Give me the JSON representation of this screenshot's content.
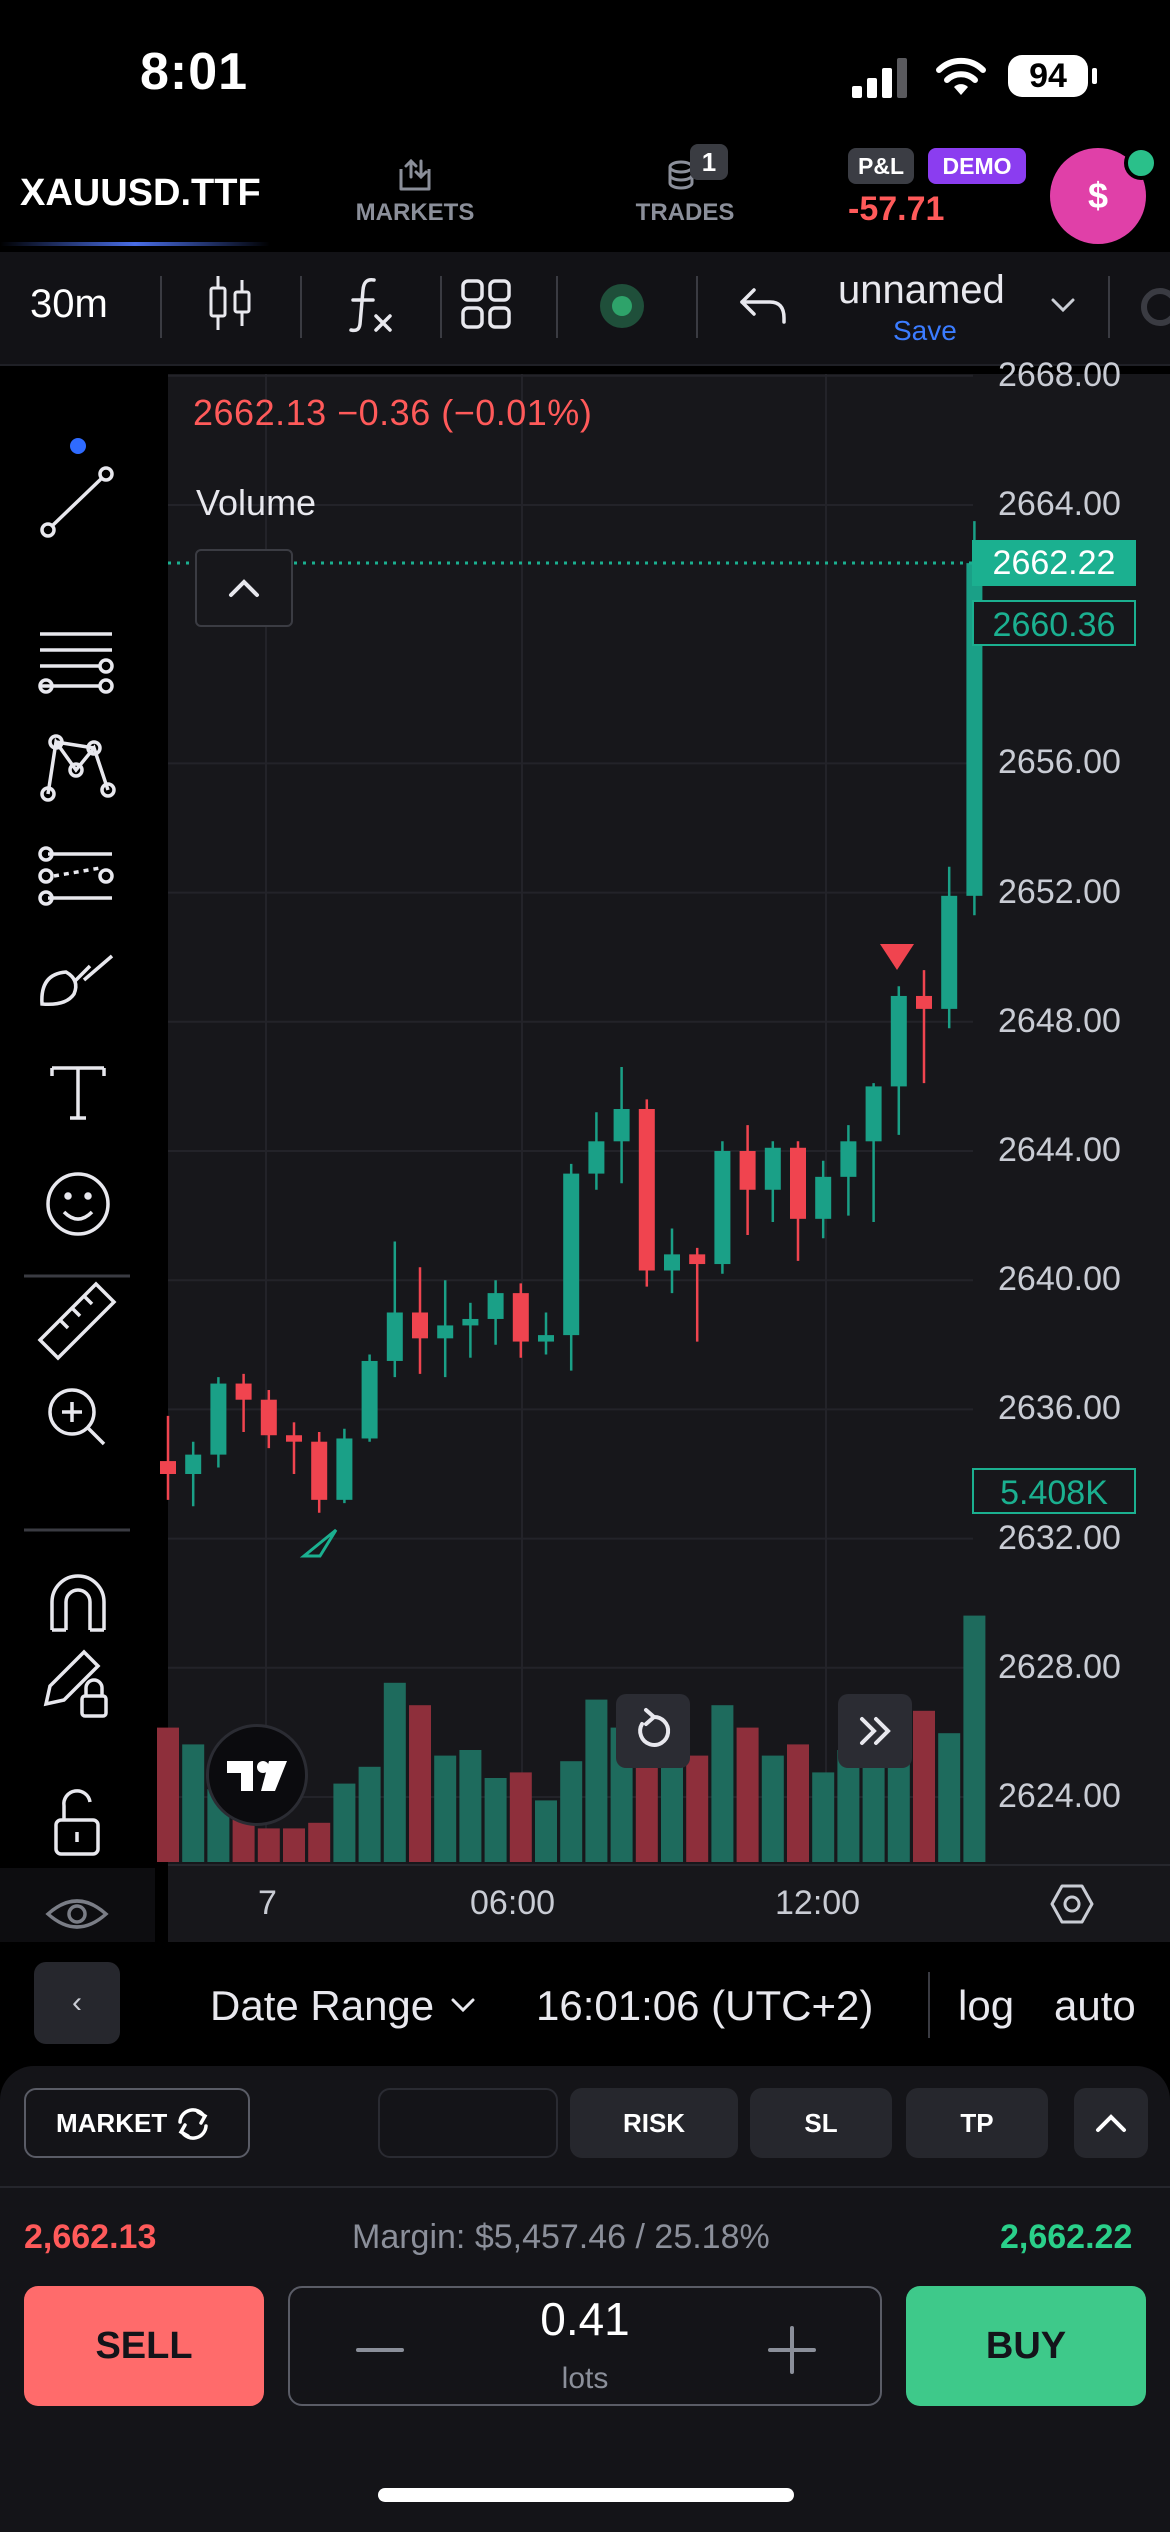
{
  "status_bar": {
    "time": "8:01",
    "battery": "94"
  },
  "header": {
    "symbol": "XAUUSD.TTF",
    "nav_markets": "MARKETS",
    "nav_trades": "TRADES",
    "trades_count": "1",
    "pl_label": "P&L",
    "demo_label": "DEMO",
    "pl_value": "-57.71",
    "avatar_symbol": "$"
  },
  "toolbar": {
    "interval": "30m",
    "chart_name": "unnamed",
    "save_label": "Save"
  },
  "chart": {
    "ohlc_text": "2662.13  −0.36 (−0.01%)",
    "volume_label": "Volume",
    "current_price_tag": "2662.22",
    "open_price_tag": "2660.36",
    "volume_tag": "5.408K"
  },
  "chart_data": {
    "type": "candlestick",
    "y_axis": {
      "ticks": [
        "2668.00",
        "2664.00",
        "2656.00",
        "2652.00",
        "2648.00",
        "2644.00",
        "2640.00",
        "2636.00",
        "2632.00",
        "2628.00",
        "2624.00"
      ],
      "range": [
        2623,
        2668
      ]
    },
    "x_axis": {
      "ticks": [
        "7",
        "06:00",
        "12:00"
      ]
    },
    "colors": {
      "up": "#1aa087",
      "down": "#f0444f",
      "volume_up": "#1e6b5d",
      "volume_down": "#8e2f3b"
    },
    "candles": [
      {
        "o": 2634.4,
        "h": 2635.8,
        "l": 2633.2,
        "c": 2634.0
      },
      {
        "o": 2634.0,
        "h": 2635.0,
        "l": 2633.0,
        "c": 2634.6
      },
      {
        "o": 2634.6,
        "h": 2637.0,
        "l": 2634.2,
        "c": 2636.8
      },
      {
        "o": 2636.8,
        "h": 2637.1,
        "l": 2635.3,
        "c": 2636.3
      },
      {
        "o": 2636.3,
        "h": 2636.6,
        "l": 2634.8,
        "c": 2635.2
      },
      {
        "o": 2635.2,
        "h": 2635.6,
        "l": 2634.0,
        "c": 2635.0
      },
      {
        "o": 2635.0,
        "h": 2635.3,
        "l": 2632.8,
        "c": 2633.2
      },
      {
        "o": 2633.2,
        "h": 2635.4,
        "l": 2633.1,
        "c": 2635.1
      },
      {
        "o": 2635.1,
        "h": 2637.7,
        "l": 2635.0,
        "c": 2637.5
      },
      {
        "o": 2637.5,
        "h": 2641.2,
        "l": 2637.0,
        "c": 2639.0
      },
      {
        "o": 2639.0,
        "h": 2640.4,
        "l": 2637.1,
        "c": 2638.2
      },
      {
        "o": 2638.2,
        "h": 2640.0,
        "l": 2637.0,
        "c": 2638.6
      },
      {
        "o": 2638.6,
        "h": 2639.3,
        "l": 2637.6,
        "c": 2638.8
      },
      {
        "o": 2638.8,
        "h": 2640.0,
        "l": 2638.0,
        "c": 2639.6
      },
      {
        "o": 2639.6,
        "h": 2639.9,
        "l": 2637.6,
        "c": 2638.1
      },
      {
        "o": 2638.1,
        "h": 2639.0,
        "l": 2637.7,
        "c": 2638.3
      },
      {
        "o": 2638.3,
        "h": 2643.6,
        "l": 2637.2,
        "c": 2643.3
      },
      {
        "o": 2643.3,
        "h": 2645.2,
        "l": 2642.8,
        "c": 2644.3
      },
      {
        "o": 2644.3,
        "h": 2646.6,
        "l": 2643.0,
        "c": 2645.3
      },
      {
        "o": 2645.3,
        "h": 2645.6,
        "l": 2639.8,
        "c": 2640.3
      },
      {
        "o": 2640.3,
        "h": 2641.6,
        "l": 2639.6,
        "c": 2640.8
      },
      {
        "o": 2640.8,
        "h": 2641.0,
        "l": 2638.1,
        "c": 2640.5
      },
      {
        "o": 2640.5,
        "h": 2644.3,
        "l": 2640.2,
        "c": 2644.0
      },
      {
        "o": 2644.0,
        "h": 2644.8,
        "l": 2641.4,
        "c": 2642.8
      },
      {
        "o": 2642.8,
        "h": 2644.3,
        "l": 2641.8,
        "c": 2644.1
      },
      {
        "o": 2644.1,
        "h": 2644.3,
        "l": 2640.6,
        "c": 2641.9
      },
      {
        "o": 2641.9,
        "h": 2643.7,
        "l": 2641.3,
        "c": 2643.2
      },
      {
        "o": 2643.2,
        "h": 2644.8,
        "l": 2642.0,
        "c": 2644.3
      },
      {
        "o": 2644.3,
        "h": 2646.1,
        "l": 2641.8,
        "c": 2646.0
      },
      {
        "o": 2646.0,
        "h": 2649.1,
        "l": 2644.5,
        "c": 2648.8
      },
      {
        "o": 2648.8,
        "h": 2649.6,
        "l": 2646.1,
        "c": 2648.4
      },
      {
        "o": 2648.4,
        "h": 2652.8,
        "l": 2647.8,
        "c": 2651.9
      },
      {
        "o": 2651.9,
        "h": 2663.5,
        "l": 2651.3,
        "c": 2662.2
      }
    ],
    "volume": [
      24,
      21,
      13,
      9,
      6,
      6,
      7,
      14,
      17,
      32,
      28,
      19,
      20,
      15,
      16,
      11,
      18,
      29,
      24,
      25,
      17,
      19,
      28,
      24,
      19,
      21,
      16,
      20,
      21,
      24,
      27,
      23,
      44
    ]
  },
  "time_axis": {
    "label_day": "7",
    "label_06": "06:00",
    "label_12": "12:00"
  },
  "date_row": {
    "date_range": "Date Range",
    "clock": "16:01:06 (UTC+2)",
    "log": "log",
    "auto": "auto",
    "back": "‹"
  },
  "order_panel": {
    "market_label": "MARKET",
    "risk_label": "RISK",
    "sl_label": "SL",
    "tp_label": "TP",
    "bid": "2,662.13",
    "ask": "2,662.22",
    "margin": "Margin: $5,457.46 / 25.18%",
    "sell_label": "SELL",
    "buy_label": "BUY",
    "lots_value": "0.41",
    "lots_label": "lots"
  }
}
